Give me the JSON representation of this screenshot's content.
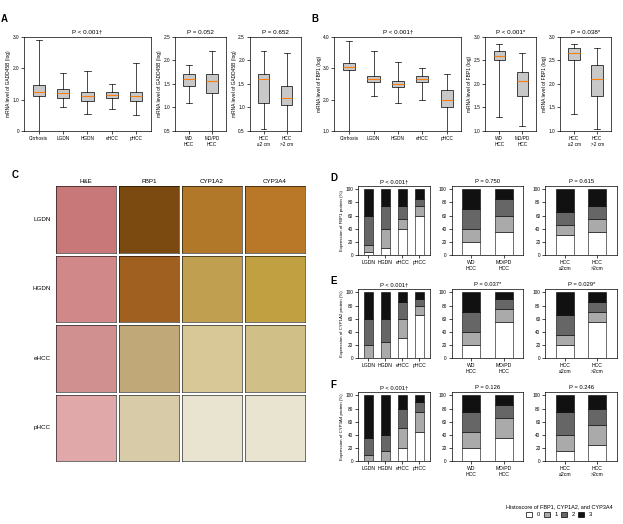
{
  "chart_data": [
    {
      "type": "box",
      "title": "P < 0.001†",
      "ylabel": "mRNA level of GADD45B (log)",
      "annotations": [
        "A"
      ],
      "categories": [
        "Cirrhosis",
        "LGDN",
        "HGDN",
        "eHCC",
        "pHCC"
      ],
      "median": [
        1.25,
        1.2,
        1.1,
        1.15,
        1.1
      ],
      "q1": [
        1.1,
        1.05,
        0.95,
        1.05,
        0.95
      ],
      "q3": [
        1.45,
        1.35,
        1.25,
        1.25,
        1.25
      ],
      "whislo": [
        0.0,
        0.75,
        0.55,
        0.7,
        0.5
      ],
      "whishi": [
        2.9,
        1.85,
        1.9,
        1.5,
        2.15
      ],
      "color": "#c8c8c8",
      "ylim": [
        0,
        3.0
      ],
      "yticks": [
        0,
        {
          "value": 1,
          "label": "1.0"
        },
        {
          "value": 2,
          "label": "2.0"
        },
        {
          "value": 3,
          "label": "3.0"
        }
      ]
    },
    {
      "type": "box",
      "title": "P = 0.052",
      "ylabel": "mRNA level of GADD45B (log)",
      "categories": [
        "WD\nHCC",
        "MD/PD\nHCC"
      ],
      "median": [
        1.6,
        1.55
      ],
      "q1": [
        1.45,
        1.3
      ],
      "q3": [
        1.7,
        1.7
      ],
      "whislo": [
        1.1,
        0.5
      ],
      "whishi": [
        1.9,
        2.2
      ],
      "color": "#c8c8c8",
      "ylim": [
        0.5,
        2.5
      ],
      "yticks": [
        0.5,
        {
          "value": 1,
          "label": "1.0"
        },
        1.5,
        {
          "value": 2,
          "label": "2.0"
        },
        2.5
      ]
    },
    {
      "type": "box",
      "title": "P = 0.652",
      "ylabel": "mRNA level of GADD45B (log)",
      "categories": [
        "HCC\n≤2 cm",
        "HCC\n>2 cm"
      ],
      "median": [
        1.6,
        1.2
      ],
      "q1": [
        1.1,
        1.05
      ],
      "q3": [
        1.7,
        1.45
      ],
      "whislo": [
        0.55,
        0.5
      ],
      "whishi": [
        2.2,
        2.15
      ],
      "color": "#c8c8c8",
      "ylim": [
        0.5,
        2.5
      ],
      "yticks": [
        0.5,
        {
          "value": 1,
          "label": "1.0"
        },
        1.5,
        {
          "value": 2,
          "label": "2.0"
        },
        2.5
      ]
    },
    {
      "type": "box",
      "title": "P < 0.001†",
      "ylabel": "mRNA level of FBP1 (log)",
      "annotations": [
        "B"
      ],
      "categories": [
        "Cirrhosis",
        "LGDN",
        "HGDN",
        "eHCC",
        "pHCC"
      ],
      "median": [
        3.05,
        2.65,
        2.5,
        2.65,
        2.0
      ],
      "q1": [
        2.95,
        2.55,
        2.4,
        2.55,
        1.75
      ],
      "q3": [
        3.15,
        2.75,
        2.6,
        2.75,
        2.3
      ],
      "whislo": [
        1.0,
        2.1,
        1.9,
        2.0,
        1.0
      ],
      "whishi": [
        3.85,
        3.55,
        3.2,
        3.0,
        2.8
      ],
      "color": "#c8c8c8",
      "ylim": [
        1.0,
        4.0
      ],
      "yticks": [
        {
          "value": 1,
          "label": "1.0"
        },
        {
          "value": 2,
          "label": "2.0"
        },
        {
          "value": 3,
          "label": "3.0"
        },
        {
          "value": 4,
          "label": "4.0"
        }
      ]
    },
    {
      "type": "box",
      "title": "P < 0.001*",
      "ylabel": "mRNA level of FBP1 (log)",
      "categories": [
        "WD\nHCC",
        "MD/PD\nHCC"
      ],
      "median": [
        2.6,
        2.05
      ],
      "q1": [
        2.5,
        1.75
      ],
      "q3": [
        2.7,
        2.25
      ],
      "whislo": [
        1.3,
        1.1
      ],
      "whishi": [
        2.85,
        2.65
      ],
      "color": "#c8c8c8",
      "ylim": [
        1.0,
        3.0
      ],
      "yticks": [
        {
          "value": 1,
          "label": "1.0"
        },
        1.5,
        {
          "value": 2,
          "label": "2.0"
        },
        2.5,
        {
          "value": 3,
          "label": "3.0"
        }
      ]
    },
    {
      "type": "box",
      "title": "P = 0.038*",
      "ylabel": "mRNA level of FBP1 (log)",
      "categories": [
        "HCC\n≤2 cm",
        "HCC\n>2 cm"
      ],
      "median": [
        2.65,
        2.1
      ],
      "q1": [
        2.5,
        1.75
      ],
      "q3": [
        2.75,
        2.4
      ],
      "whislo": [
        1.35,
        1.05
      ],
      "whishi": [
        2.85,
        2.75
      ],
      "color": "#c8c8c8",
      "ylim": [
        1.0,
        3.0
      ],
      "yticks": [
        {
          "value": 1,
          "label": "1.0"
        },
        1.5,
        {
          "value": 2,
          "label": "2.0"
        },
        2.5,
        {
          "value": 3,
          "label": "3.0"
        }
      ]
    },
    {
      "type": "image_grid",
      "annotations": [
        "C"
      ],
      "categories": [
        "H&E",
        "FBP1",
        "CYP1A2",
        "CYP3A4"
      ],
      "rows": [
        "LGDN",
        "HGDN",
        "eHCC",
        "pHCC"
      ],
      "colors": [
        [
          "#c87878",
          "#7a4a10",
          "#b07828",
          "#b87828"
        ],
        [
          "#d08888",
          "#a06020",
          "#c0a050",
          "#c0a040"
        ],
        [
          "#d09090",
          "#c0a878",
          "#d8c898",
          "#d0c088"
        ],
        [
          "#e0a8a8",
          "#d8cca8",
          "#e8e4d0",
          "#e8e4d0"
        ]
      ]
    },
    {
      "type": "bar",
      "stacked": true,
      "title": "P < 0.001†",
      "ylabel": "Expression of FBP1 protein (%)",
      "annotations": [
        "D"
      ],
      "categories": [
        "LGDN",
        "HGDN",
        "eHCC",
        "pHCC"
      ],
      "series": [
        {
          "name": "0",
          "color": "#ffffff",
          "values": [
            5,
            10,
            40,
            60
          ]
        },
        {
          "name": "1",
          "color": "#aaaaaa",
          "values": [
            10,
            30,
            15,
            15
          ]
        },
        {
          "name": "2",
          "color": "#666666",
          "values": [
            45,
            35,
            20,
            10
          ]
        },
        {
          "name": "3",
          "color": "#111111",
          "values": [
            40,
            25,
            25,
            15
          ]
        }
      ],
      "ylim": [
        0,
        105
      ],
      "yticks": [
        0,
        20,
        40,
        60,
        80,
        100
      ]
    },
    {
      "type": "bar",
      "stacked": true,
      "title": "P = 0.750",
      "categories": [
        "WD\nHCC",
        "MD/PD\nHCC"
      ],
      "series": [
        {
          "name": "0",
          "color": "#ffffff",
          "values": [
            20,
            35
          ]
        },
        {
          "name": "1",
          "color": "#aaaaaa",
          "values": [
            20,
            25
          ]
        },
        {
          "name": "2",
          "color": "#666666",
          "values": [
            30,
            25
          ]
        },
        {
          "name": "3",
          "color": "#111111",
          "values": [
            30,
            15
          ]
        }
      ],
      "ylim": [
        0,
        105
      ],
      "yticks": [
        0,
        20,
        40,
        60,
        80,
        100
      ]
    },
    {
      "type": "bar",
      "stacked": true,
      "title": "P = 0.615",
      "categories": [
        "HCC\n≤2cm",
        "HCC\n>2cm"
      ],
      "series": [
        {
          "name": "0",
          "color": "#ffffff",
          "values": [
            30,
            35
          ]
        },
        {
          "name": "1",
          "color": "#aaaaaa",
          "values": [
            15,
            20
          ]
        },
        {
          "name": "2",
          "color": "#666666",
          "values": [
            20,
            20
          ]
        },
        {
          "name": "3",
          "color": "#111111",
          "values": [
            35,
            25
          ]
        }
      ],
      "ylim": [
        0,
        105
      ],
      "yticks": [
        0,
        20,
        40,
        60,
        80,
        100
      ]
    },
    {
      "type": "bar",
      "stacked": true,
      "title": "P < 0.001†",
      "ylabel": "Expression of CYP1A2 protein (%)",
      "annotations": [
        "E"
      ],
      "categories": [
        "LGDN",
        "HGDN",
        "eHCC",
        "pHCC"
      ],
      "series": [
        {
          "name": "0",
          "color": "#ffffff",
          "values": [
            0,
            0,
            30,
            65
          ]
        },
        {
          "name": "1",
          "color": "#aaaaaa",
          "values": [
            20,
            25,
            30,
            15
          ]
        },
        {
          "name": "2",
          "color": "#666666",
          "values": [
            40,
            35,
            25,
            10
          ]
        },
        {
          "name": "3",
          "color": "#111111",
          "values": [
            40,
            40,
            15,
            10
          ]
        }
      ],
      "ylim": [
        0,
        105
      ],
      "yticks": [
        0,
        20,
        40,
        60,
        80,
        100
      ]
    },
    {
      "type": "bar",
      "stacked": true,
      "title": "P = 0.037*",
      "categories": [
        "WD\nHCC",
        "MD/PD\nHCC"
      ],
      "series": [
        {
          "name": "0",
          "color": "#ffffff",
          "values": [
            20,
            55
          ]
        },
        {
          "name": "1",
          "color": "#aaaaaa",
          "values": [
            20,
            20
          ]
        },
        {
          "name": "2",
          "color": "#666666",
          "values": [
            30,
            15
          ]
        },
        {
          "name": "3",
          "color": "#111111",
          "values": [
            30,
            10
          ]
        }
      ],
      "ylim": [
        0,
        105
      ],
      "yticks": [
        0,
        20,
        40,
        60,
        80,
        100
      ]
    },
    {
      "type": "bar",
      "stacked": true,
      "title": "P = 0.029*",
      "categories": [
        "HCC\n≤2cm",
        "HCC\n>2cm"
      ],
      "series": [
        {
          "name": "0",
          "color": "#ffffff",
          "values": [
            20,
            55
          ]
        },
        {
          "name": "1",
          "color": "#aaaaaa",
          "values": [
            15,
            15
          ]
        },
        {
          "name": "2",
          "color": "#666666",
          "values": [
            30,
            15
          ]
        },
        {
          "name": "3",
          "color": "#111111",
          "values": [
            35,
            15
          ]
        }
      ],
      "ylim": [
        0,
        105
      ],
      "yticks": [
        0,
        20,
        40,
        60,
        80,
        100
      ]
    },
    {
      "type": "bar",
      "stacked": true,
      "title": "P < 0.001†",
      "ylabel": "Expression of CYP3A4 protein (%)",
      "annotations": [
        "F"
      ],
      "categories": [
        "LGDN",
        "HGDN",
        "eHCC",
        "pHCC"
      ],
      "series": [
        {
          "name": "0",
          "color": "#ffffff",
          "values": [
            0,
            0,
            20,
            45
          ]
        },
        {
          "name": "1",
          "color": "#aaaaaa",
          "values": [
            10,
            15,
            30,
            30
          ]
        },
        {
          "name": "2",
          "color": "#666666",
          "values": [
            25,
            25,
            30,
            15
          ]
        },
        {
          "name": "3",
          "color": "#111111",
          "values": [
            65,
            60,
            20,
            10
          ]
        }
      ],
      "ylim": [
        0,
        105
      ],
      "yticks": [
        0,
        20,
        40,
        60,
        80,
        100
      ]
    },
    {
      "type": "bar",
      "stacked": true,
      "title": "P = 0.126",
      "categories": [
        "WD\nHCC",
        "MD/PD\nHCC"
      ],
      "series": [
        {
          "name": "0",
          "color": "#ffffff",
          "values": [
            20,
            35
          ]
        },
        {
          "name": "1",
          "color": "#aaaaaa",
          "values": [
            25,
            30
          ]
        },
        {
          "name": "2",
          "color": "#666666",
          "values": [
            30,
            20
          ]
        },
        {
          "name": "3",
          "color": "#111111",
          "values": [
            25,
            15
          ]
        }
      ],
      "ylim": [
        0,
        105
      ],
      "yticks": [
        0,
        20,
        40,
        60,
        80,
        100
      ]
    },
    {
      "type": "bar",
      "stacked": true,
      "title": "P = 0.246",
      "legend": "lower right",
      "legend_title": "Histoscore of FBP1, CYP1A2, and CYP3A4",
      "categories": [
        "HCC\n≤2cm",
        "HCC\n>2cm"
      ],
      "series": [
        {
          "name": "0",
          "color": "#ffffff",
          "values": [
            15,
            25
          ]
        },
        {
          "name": "1",
          "color": "#aaaaaa",
          "values": [
            25,
            30
          ]
        },
        {
          "name": "2",
          "color": "#666666",
          "values": [
            35,
            25
          ]
        },
        {
          "name": "3",
          "color": "#111111",
          "values": [
            25,
            20
          ]
        }
      ],
      "ylim": [
        0,
        105
      ],
      "yticks": [
        0,
        20,
        40,
        60,
        80,
        100
      ]
    }
  ]
}
